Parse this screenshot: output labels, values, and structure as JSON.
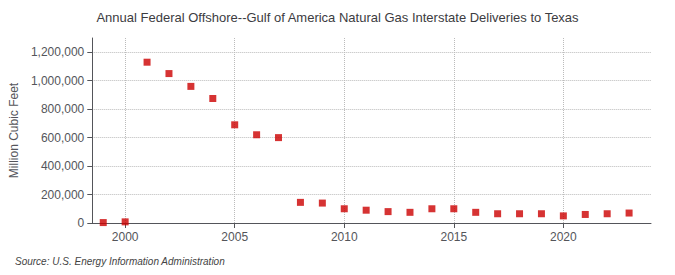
{
  "chart_data": {
    "type": "scatter",
    "title": "Annual Federal Offshore--Gulf of America Natural Gas Interstate Deliveries to Texas",
    "ylabel": "Million Cubic Feet",
    "annotation": "Source: U.S. Energy Information Administration",
    "x": [
      1999,
      2000,
      2001,
      2002,
      2003,
      2004,
      2005,
      2006,
      2007,
      2008,
      2009,
      2010,
      2011,
      2012,
      2013,
      2014,
      2015,
      2016,
      2017,
      2018,
      2019,
      2020,
      2021,
      2022,
      2023
    ],
    "values": [
      3000,
      8000,
      1130000,
      1050000,
      960000,
      875000,
      690000,
      620000,
      600000,
      145000,
      140000,
      100000,
      90000,
      80000,
      75000,
      100000,
      100000,
      75000,
      65000,
      65000,
      65000,
      50000,
      60000,
      65000,
      70000
    ],
    "color": "#cc0000",
    "marker": "square",
    "xlim": [
      1998.5,
      2024
    ],
    "xticks": [
      2000,
      2005,
      2010,
      2015,
      2020
    ],
    "ylim": [
      0,
      1300000
    ],
    "yticks": [
      0,
      {
        "value": 200000,
        "label": "200,000"
      },
      {
        "value": 400000,
        "label": "400,000"
      },
      {
        "value": 600000,
        "label": "600,000"
      },
      {
        "value": 800000,
        "label": "800,000"
      },
      {
        "value": 1000000,
        "label": "1,000,000"
      },
      {
        "value": 1200000,
        "label": "1,200,000"
      }
    ],
    "grid": true
  }
}
